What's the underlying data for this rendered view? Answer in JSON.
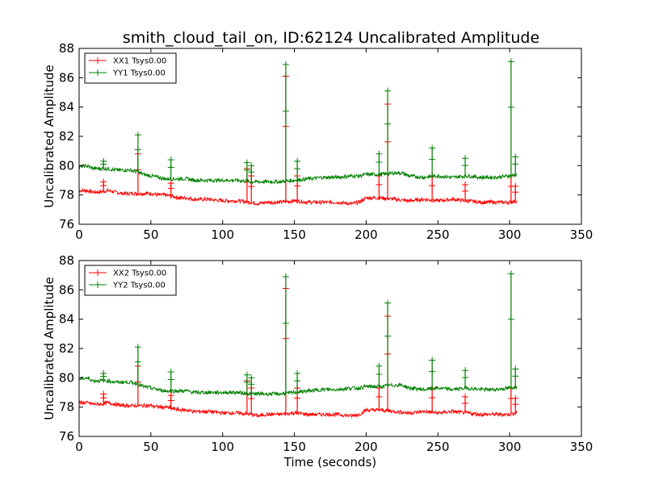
{
  "title": "smith_cloud_tail_on, ID:62124 Uncalibrated Amplitude",
  "colors": {
    "xx": "#ff0000",
    "yy": "#008000",
    "axes": "#000000"
  },
  "chart_data": [
    {
      "type": "line",
      "xlabel": "",
      "ylabel": "Uncalibrated Amplitude",
      "xlim": [
        0,
        350
      ],
      "ylim": [
        76,
        88
      ],
      "xticks": [
        0,
        50,
        100,
        150,
        200,
        250,
        300,
        350
      ],
      "yticks": [
        76,
        78,
        80,
        82,
        84,
        86,
        88
      ],
      "legend": "top-left",
      "series": [
        {
          "name": "XX1 Tsys0.00",
          "color": "#ff0000",
          "marker": "+",
          "x": [
            0,
            5,
            10,
            15,
            20,
            25,
            30,
            35,
            40,
            45,
            50,
            55,
            60,
            65,
            70,
            75,
            80,
            90,
            100,
            110,
            120,
            125,
            130,
            140,
            150,
            160,
            170,
            180,
            190,
            195,
            200,
            210,
            220,
            230,
            240,
            250,
            260,
            270,
            280,
            290,
            300,
            305
          ],
          "y": [
            78.3,
            78.3,
            78.2,
            78.2,
            78.3,
            78.2,
            78.1,
            78.1,
            78.1,
            78.1,
            78.1,
            78.0,
            78.0,
            77.9,
            77.8,
            77.8,
            77.7,
            77.7,
            77.6,
            77.6,
            77.5,
            77.4,
            77.5,
            77.5,
            77.6,
            77.5,
            77.5,
            77.5,
            77.4,
            77.5,
            77.8,
            77.8,
            77.7,
            77.6,
            77.7,
            77.6,
            77.7,
            77.6,
            77.5,
            77.5,
            77.5,
            77.6
          ],
          "spikes": [
            [
              17,
              78.9
            ],
            [
              41,
              80.8
            ],
            [
              64,
              78.8
            ],
            [
              117,
              79.8
            ],
            [
              120,
              79.3
            ],
            [
              144,
              86.1
            ],
            [
              152,
              79.3
            ],
            [
              209,
              79.3
            ],
            [
              215,
              84.2
            ],
            [
              246,
              79.3
            ],
            [
              269,
              78.7
            ],
            [
              301,
              79.3
            ],
            [
              304,
              78.6
            ]
          ]
        },
        {
          "name": "YY1 Tsys0.00",
          "color": "#008000",
          "marker": "+",
          "x": [
            0,
            5,
            10,
            15,
            20,
            25,
            30,
            35,
            40,
            45,
            50,
            55,
            60,
            65,
            70,
            75,
            80,
            90,
            100,
            110,
            120,
            125,
            130,
            140,
            150,
            160,
            170,
            180,
            190,
            195,
            200,
            210,
            220,
            225,
            230,
            240,
            250,
            260,
            270,
            280,
            290,
            300,
            305
          ],
          "y": [
            79.9,
            80.0,
            79.8,
            79.8,
            79.8,
            79.7,
            79.7,
            79.7,
            79.6,
            79.4,
            79.3,
            79.2,
            79.1,
            79.1,
            79.1,
            79.1,
            79.0,
            79.0,
            79.0,
            79.0,
            78.9,
            78.9,
            78.9,
            78.9,
            79.0,
            79.1,
            79.2,
            79.2,
            79.3,
            79.3,
            79.4,
            79.4,
            79.5,
            79.5,
            79.3,
            79.2,
            79.3,
            79.2,
            79.3,
            79.2,
            79.2,
            79.3,
            79.4
          ],
          "spikes": [
            [
              17,
              80.3
            ],
            [
              41,
              82.1
            ],
            [
              64,
              80.4
            ],
            [
              117,
              80.2
            ],
            [
              120,
              80.0
            ],
            [
              144,
              86.9
            ],
            [
              152,
              80.3
            ],
            [
              209,
              80.8
            ],
            [
              215,
              85.1
            ],
            [
              246,
              81.2
            ],
            [
              269,
              80.5
            ],
            [
              301,
              87.1
            ],
            [
              304,
              80.6
            ]
          ]
        }
      ]
    },
    {
      "type": "line",
      "xlabel": "Time (seconds)",
      "ylabel": "Uncalibrated Amplitude",
      "xlim": [
        0,
        350
      ],
      "ylim": [
        76,
        88
      ],
      "xticks": [
        0,
        50,
        100,
        150,
        200,
        250,
        300,
        350
      ],
      "yticks": [
        76,
        78,
        80,
        82,
        84,
        86,
        88
      ],
      "legend": "top-left",
      "series": [
        {
          "name": "XX2 Tsys0.00",
          "color": "#ff0000",
          "marker": "+",
          "x": [
            0,
            5,
            10,
            15,
            20,
            25,
            30,
            35,
            40,
            45,
            50,
            55,
            60,
            65,
            70,
            75,
            80,
            90,
            100,
            110,
            120,
            125,
            130,
            140,
            150,
            160,
            170,
            180,
            190,
            195,
            200,
            210,
            220,
            230,
            240,
            250,
            260,
            270,
            280,
            290,
            300,
            305
          ],
          "y": [
            78.3,
            78.3,
            78.2,
            78.2,
            78.3,
            78.2,
            78.1,
            78.1,
            78.1,
            78.1,
            78.1,
            78.0,
            78.0,
            77.9,
            77.8,
            77.8,
            77.7,
            77.7,
            77.6,
            77.6,
            77.5,
            77.4,
            77.5,
            77.5,
            77.6,
            77.5,
            77.5,
            77.5,
            77.4,
            77.5,
            77.8,
            77.8,
            77.7,
            77.6,
            77.7,
            77.6,
            77.7,
            77.6,
            77.5,
            77.5,
            77.5,
            77.6
          ],
          "spikes": [
            [
              17,
              78.9
            ],
            [
              41,
              80.8
            ],
            [
              64,
              78.8
            ],
            [
              117,
              79.8
            ],
            [
              120,
              79.3
            ],
            [
              144,
              86.1
            ],
            [
              152,
              79.3
            ],
            [
              209,
              79.3
            ],
            [
              215,
              84.2
            ],
            [
              246,
              79.3
            ],
            [
              269,
              78.7
            ],
            [
              301,
              79.3
            ],
            [
              304,
              78.6
            ]
          ]
        },
        {
          "name": "YY2 Tsys0.00",
          "color": "#008000",
          "marker": "+",
          "x": [
            0,
            5,
            10,
            15,
            20,
            25,
            30,
            35,
            40,
            45,
            50,
            55,
            60,
            65,
            70,
            75,
            80,
            90,
            100,
            110,
            120,
            125,
            130,
            140,
            150,
            160,
            170,
            180,
            190,
            195,
            200,
            210,
            220,
            225,
            230,
            240,
            250,
            260,
            270,
            280,
            290,
            300,
            305
          ],
          "y": [
            79.9,
            80.0,
            79.8,
            79.8,
            79.8,
            79.7,
            79.7,
            79.7,
            79.6,
            79.4,
            79.3,
            79.2,
            79.1,
            79.1,
            79.1,
            79.1,
            79.0,
            79.0,
            79.0,
            79.0,
            78.9,
            78.9,
            78.9,
            78.9,
            79.0,
            79.1,
            79.2,
            79.2,
            79.3,
            79.3,
            79.4,
            79.4,
            79.5,
            79.5,
            79.3,
            79.2,
            79.3,
            79.2,
            79.3,
            79.2,
            79.2,
            79.3,
            79.4
          ],
          "spikes": [
            [
              17,
              80.3
            ],
            [
              41,
              82.1
            ],
            [
              64,
              80.4
            ],
            [
              117,
              80.2
            ],
            [
              120,
              80.0
            ],
            [
              144,
              86.9
            ],
            [
              152,
              80.3
            ],
            [
              209,
              80.8
            ],
            [
              215,
              85.1
            ],
            [
              246,
              81.2
            ],
            [
              269,
              80.5
            ],
            [
              301,
              87.1
            ],
            [
              304,
              80.6
            ]
          ]
        }
      ]
    }
  ]
}
